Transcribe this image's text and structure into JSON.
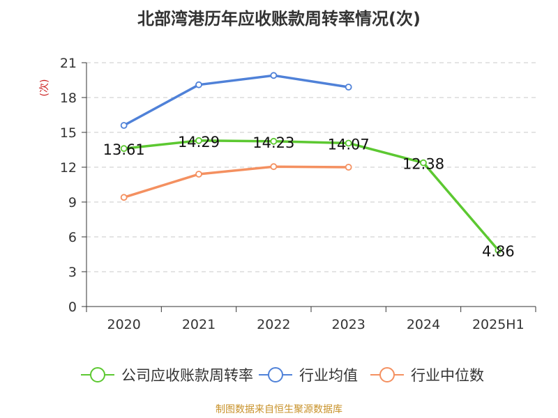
{
  "chart_data": {
    "type": "line",
    "title": "北部湾港历年应收账款周转率情况(次)",
    "ylabel": "(次)",
    "categories": [
      "2020",
      "2021",
      "2022",
      "2023",
      "2024",
      "2025H1"
    ],
    "ylim": [
      0,
      21
    ],
    "yticks": [
      0,
      3,
      6,
      9,
      12,
      15,
      18,
      21
    ],
    "grid": true,
    "legend_position": "bottom",
    "series": [
      {
        "name": "公司应收账款周转率",
        "color": "#5cc831",
        "values": [
          13.61,
          14.29,
          14.23,
          14.07,
          12.38,
          4.86
        ],
        "labels": [
          "13.61",
          "14.29",
          "14.23",
          "14.07",
          "12.38",
          "4.86"
        ]
      },
      {
        "name": "行业均值",
        "color": "#4f81d8",
        "values": [
          15.6,
          19.1,
          19.9,
          18.9,
          null,
          null
        ]
      },
      {
        "name": "行业中位数",
        "color": "#f49060",
        "values": [
          9.4,
          11.4,
          12.05,
          12.0,
          null,
          null
        ]
      }
    ]
  },
  "footer": {
    "source": "制图数据来自恒生聚源数据库",
    "source_color": "#c8922a"
  }
}
